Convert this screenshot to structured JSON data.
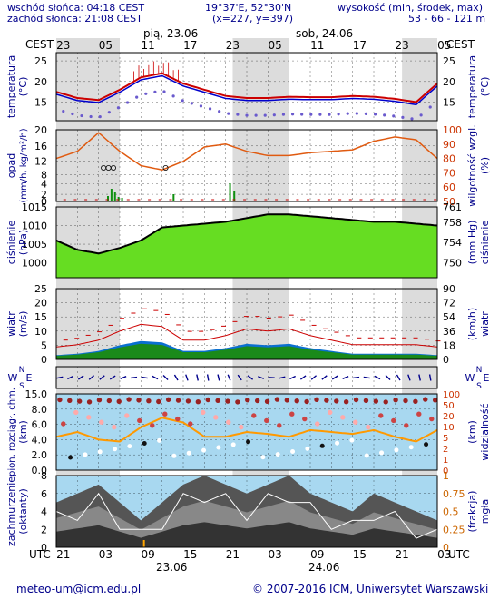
{
  "header": {
    "sunrise": "wschód słońca: 04:18 CEST",
    "sunset": "zachód słońca: 21:08 CEST",
    "coords": "19°37'E, 52°30'N",
    "grid": "(x=227, y=397)",
    "elev_label": "wysokość (min, środek, max)",
    "elev_values": "53 - 66 - 121 m"
  },
  "top_axis": {
    "left_tz": "CEST",
    "right_tz": "CEST",
    "ticks": [
      "23",
      "05",
      "11",
      "17",
      "23",
      "05",
      "11",
      "17",
      "23",
      "05"
    ],
    "day1": "pią, 23.06",
    "day2": "sob, 24.06"
  },
  "bottom_axis": {
    "left_tz": "UTC",
    "right_tz": "UTC",
    "ticks": [
      "21",
      "03",
      "09",
      "15",
      "21",
      "03",
      "09",
      "15",
      "21",
      "03"
    ],
    "day1": "23.06",
    "day2": "24.06"
  },
  "footer": {
    "email": "meteo-um@icm.edu.pl",
    "copyright": "© 2007-2016 ICM, Uniwersytet Warszawski"
  },
  "panels": {
    "temperature": {
      "left_label": "temperatura",
      "left_unit": "(°C)",
      "right_label": "temperatura",
      "right_unit": "(°C)",
      "yticks": [
        15,
        20,
        25
      ],
      "ylim": [
        10.5,
        27
      ]
    },
    "precip": {
      "left_label": "opad",
      "left_unit": "(mm/h, kg/m²/h)",
      "right_label": "wilgotność wzgl.",
      "right_unit": "(%)",
      "yticks_left": [
        0,
        2,
        4,
        8,
        12,
        16,
        20
      ],
      "yticks_right": [
        50,
        60,
        70,
        80,
        90,
        100
      ]
    },
    "pressure": {
      "left_label": "ciśnienie",
      "left_unit": "(hPa)",
      "right_label": "ciśnienie",
      "right_unit": "(mm Hg)",
      "yticks_left": [
        1000,
        1005,
        1010,
        1015
      ],
      "yticks_right": [
        750,
        754,
        758,
        761
      ],
      "ylim": [
        996,
        1015
      ]
    },
    "wind": {
      "left_label": "wiatr",
      "left_unit": "(m/s)",
      "right_label": "wiatr",
      "right_unit": "(km/h)",
      "yticks_left": [
        0,
        5,
        10,
        15,
        20,
        25
      ],
      "yticks_right": [
        0,
        18,
        36,
        54,
        72,
        90
      ]
    },
    "wind_dir": {
      "left_label": "W",
      "left_label2": "E",
      "left_n": "N",
      "left_s": "S",
      "right_label": "W",
      "right_label2": "E",
      "right_n": "N",
      "right_s": "S"
    },
    "visibility": {
      "left_label": "pion. rozciągł. chm.",
      "left_unit": "(km)",
      "right_label": "widzialność",
      "right_unit": "(km)",
      "yticks_left": [
        "0.0",
        "2.0",
        "4.0",
        "6.0",
        "8.0",
        "15.0"
      ],
      "yticks_right": [
        0,
        1,
        2,
        5,
        10,
        20,
        50,
        100
      ]
    },
    "clouds": {
      "left_label": "zachmurzenie",
      "left_unit": "(oktanty)",
      "right_label": "mgła",
      "right_unit": "(frakcja)",
      "yticks_left": [
        0,
        2,
        4,
        6,
        8
      ],
      "yticks_right": [
        "0",
        "0.25",
        "0.5",
        "0.75",
        "1"
      ]
    }
  },
  "colors": {
    "temp_line": "#cc0000",
    "temp_mean": "#0000cc",
    "dew_point": "#6a5acd",
    "rh_line": "#e05a10",
    "pressure_fill": "#66dd22",
    "wind_fill": "#1a8a1a",
    "wind_low": "#0a6fd0",
    "sky": "#a8d8f0",
    "vis_line": "#ff9900",
    "night_band": "#d8d8d8"
  },
  "chart_data": {
    "type": "line",
    "x_hours_utc": [
      18,
      21,
      24,
      27,
      30,
      33,
      36,
      39,
      42,
      45,
      48,
      51,
      54,
      57,
      60,
      63,
      66,
      69,
      72
    ],
    "series": [
      {
        "name": "temperatura",
        "unit": "°C",
        "values": [
          17.5,
          16,
          15.5,
          18,
          21,
          22,
          19.5,
          18,
          16.5,
          16,
          16,
          16.3,
          16.2,
          16.2,
          16.5,
          16.3,
          15.8,
          15,
          19.5
        ]
      },
      {
        "name": "ciśnienie",
        "unit": "hPa",
        "values": [
          1006,
          1003.5,
          1002.5,
          1004,
          1006,
          1009.5,
          1010,
          1010.5,
          1011,
          1012,
          1013,
          1013,
          1012.5,
          1012,
          1011.5,
          1011,
          1011,
          1010.5,
          1010
        ]
      },
      {
        "name": "wilgotność wzgl.",
        "unit": "%",
        "values": [
          80,
          85,
          98,
          85,
          75,
          72,
          78,
          88,
          90,
          85,
          82,
          82,
          84,
          85,
          86,
          92,
          95,
          93,
          80
        ]
      },
      {
        "name": "wiatr",
        "unit": "m/s",
        "values": [
          1.5,
          2,
          3,
          5,
          6.5,
          6,
          3,
          3,
          4,
          5.5,
          5,
          5.5,
          4,
          3,
          2,
          2,
          2,
          2,
          1.5
        ]
      },
      {
        "name": "zachmurzenie",
        "unit": "oktanty",
        "values": [
          5,
          6,
          7,
          5,
          3,
          5,
          7,
          8,
          7,
          6,
          7,
          8,
          6,
          5,
          4,
          6,
          5,
          4,
          3
        ]
      }
    ]
  }
}
